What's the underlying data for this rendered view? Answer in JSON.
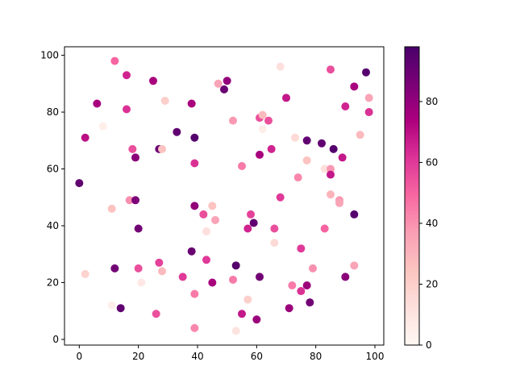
{
  "chart_data": {
    "type": "scatter",
    "title": "",
    "xlabel": "",
    "ylabel": "",
    "xlim": [
      -5,
      103
    ],
    "ylim": [
      -2,
      103
    ],
    "xticks": [
      0,
      20,
      40,
      60,
      80,
      100
    ],
    "yticks": [
      0,
      20,
      40,
      60,
      80,
      100
    ],
    "grid": false,
    "colormap": "RdPu",
    "colorbar": {
      "min": 0,
      "max": 98,
      "ticks": [
        0,
        20,
        40,
        60,
        80
      ]
    },
    "points": [
      {
        "x": 0,
        "y": 55,
        "c": 92
      },
      {
        "x": 2,
        "y": 71,
        "c": 70
      },
      {
        "x": 2,
        "y": 23,
        "c": 18
      },
      {
        "x": 6,
        "y": 83,
        "c": 75
      },
      {
        "x": 8,
        "y": 75,
        "c": 5
      },
      {
        "x": 11,
        "y": 46,
        "c": 25
      },
      {
        "x": 11,
        "y": 12,
        "c": 5
      },
      {
        "x": 12,
        "y": 98,
        "c": 50
      },
      {
        "x": 12,
        "y": 25,
        "c": 88
      },
      {
        "x": 14,
        "y": 11,
        "c": 92
      },
      {
        "x": 16,
        "y": 93,
        "c": 65
      },
      {
        "x": 16,
        "y": 81,
        "c": 62
      },
      {
        "x": 17,
        "y": 49,
        "c": 40
      },
      {
        "x": 18,
        "y": 67,
        "c": 55
      },
      {
        "x": 19,
        "y": 64,
        "c": 82
      },
      {
        "x": 19,
        "y": 49,
        "c": 85
      },
      {
        "x": 20,
        "y": 39,
        "c": 88
      },
      {
        "x": 20,
        "y": 25,
        "c": 55
      },
      {
        "x": 21,
        "y": 20,
        "c": 8
      },
      {
        "x": 25,
        "y": 91,
        "c": 75
      },
      {
        "x": 26,
        "y": 9,
        "c": 55
      },
      {
        "x": 27,
        "y": 67,
        "c": 90
      },
      {
        "x": 27,
        "y": 27,
        "c": 58
      },
      {
        "x": 28,
        "y": 67,
        "c": 25
      },
      {
        "x": 28,
        "y": 24,
        "c": 28
      },
      {
        "x": 29,
        "y": 84,
        "c": 20
      },
      {
        "x": 33,
        "y": 73,
        "c": 92
      },
      {
        "x": 35,
        "y": 22,
        "c": 60
      },
      {
        "x": 38,
        "y": 83,
        "c": 75
      },
      {
        "x": 38,
        "y": 31,
        "c": 90
      },
      {
        "x": 39,
        "y": 71,
        "c": 95
      },
      {
        "x": 39,
        "y": 62,
        "c": 62
      },
      {
        "x": 39,
        "y": 47,
        "c": 80
      },
      {
        "x": 39,
        "y": 16,
        "c": 45
      },
      {
        "x": 39,
        "y": 4,
        "c": 42
      },
      {
        "x": 42,
        "y": 44,
        "c": 55
      },
      {
        "x": 43,
        "y": 38,
        "c": 12
      },
      {
        "x": 43,
        "y": 28,
        "c": 60
      },
      {
        "x": 45,
        "y": 47,
        "c": 25
      },
      {
        "x": 45,
        "y": 20,
        "c": 75
      },
      {
        "x": 46,
        "y": 42,
        "c": 35
      },
      {
        "x": 47,
        "y": 90,
        "c": 35
      },
      {
        "x": 49,
        "y": 88,
        "c": 90
      },
      {
        "x": 50,
        "y": 91,
        "c": 80
      },
      {
        "x": 52,
        "y": 77,
        "c": 38
      },
      {
        "x": 52,
        "y": 21,
        "c": 45
      },
      {
        "x": 53,
        "y": 26,
        "c": 95
      },
      {
        "x": 53,
        "y": 3,
        "c": 10
      },
      {
        "x": 55,
        "y": 61,
        "c": 45
      },
      {
        "x": 55,
        "y": 9,
        "c": 68
      },
      {
        "x": 57,
        "y": 39,
        "c": 65
      },
      {
        "x": 57,
        "y": 14,
        "c": 20
      },
      {
        "x": 58,
        "y": 44,
        "c": 58
      },
      {
        "x": 59,
        "y": 41,
        "c": 92
      },
      {
        "x": 60,
        "y": 7,
        "c": 78
      },
      {
        "x": 61,
        "y": 78,
        "c": 55
      },
      {
        "x": 61,
        "y": 65,
        "c": 75
      },
      {
        "x": 61,
        "y": 22,
        "c": 88
      },
      {
        "x": 62,
        "y": 79,
        "c": 28
      },
      {
        "x": 62,
        "y": 74,
        "c": 5
      },
      {
        "x": 64,
        "y": 77,
        "c": 55
      },
      {
        "x": 65,
        "y": 67,
        "c": 65
      },
      {
        "x": 66,
        "y": 39,
        "c": 55
      },
      {
        "x": 66,
        "y": 34,
        "c": 15
      },
      {
        "x": 68,
        "y": 96,
        "c": 12
      },
      {
        "x": 68,
        "y": 50,
        "c": 60
      },
      {
        "x": 70,
        "y": 85,
        "c": 68
      },
      {
        "x": 71,
        "y": 11,
        "c": 78
      },
      {
        "x": 72,
        "y": 19,
        "c": 45
      },
      {
        "x": 73,
        "y": 71,
        "c": 15
      },
      {
        "x": 74,
        "y": 57,
        "c": 42
      },
      {
        "x": 75,
        "y": 32,
        "c": 60
      },
      {
        "x": 75,
        "y": 17,
        "c": 62
      },
      {
        "x": 77,
        "y": 70,
        "c": 92
      },
      {
        "x": 77,
        "y": 63,
        "c": 25
      },
      {
        "x": 77,
        "y": 19,
        "c": 78
      },
      {
        "x": 78,
        "y": 13,
        "c": 88
      },
      {
        "x": 79,
        "y": 25,
        "c": 40
      },
      {
        "x": 82,
        "y": 69,
        "c": 92
      },
      {
        "x": 83,
        "y": 60,
        "c": 12
      },
      {
        "x": 83,
        "y": 39,
        "c": 50
      },
      {
        "x": 85,
        "y": 95,
        "c": 55
      },
      {
        "x": 85,
        "y": 60,
        "c": 38
      },
      {
        "x": 85,
        "y": 58,
        "c": 68
      },
      {
        "x": 85,
        "y": 51,
        "c": 30
      },
      {
        "x": 86,
        "y": 67,
        "c": 95
      },
      {
        "x": 88,
        "y": 49,
        "c": 38
      },
      {
        "x": 88,
        "y": 48,
        "c": 35
      },
      {
        "x": 89,
        "y": 64,
        "c": 68
      },
      {
        "x": 90,
        "y": 82,
        "c": 65
      },
      {
        "x": 90,
        "y": 22,
        "c": 82
      },
      {
        "x": 93,
        "y": 89,
        "c": 75
      },
      {
        "x": 93,
        "y": 44,
        "c": 95
      },
      {
        "x": 93,
        "y": 26,
        "c": 35
      },
      {
        "x": 95,
        "y": 72,
        "c": 28
      },
      {
        "x": 97,
        "y": 94,
        "c": 95
      },
      {
        "x": 98,
        "y": 85,
        "c": 35
      },
      {
        "x": 98,
        "y": 80,
        "c": 62
      }
    ]
  }
}
